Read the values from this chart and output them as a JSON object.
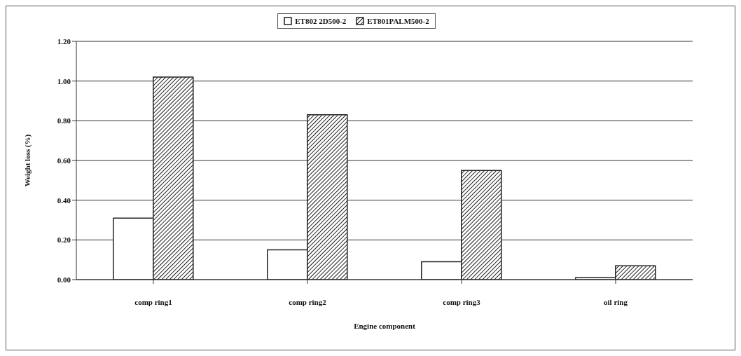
{
  "chart_data": {
    "type": "bar",
    "xlabel": "Engine component",
    "ylabel": "Weight loss (%)",
    "categories": [
      "comp ring1",
      "comp ring2",
      "comp ring3",
      "oil ring"
    ],
    "series": [
      {
        "name": "ET802 2D500-2",
        "color": "#ffffff",
        "values": [
          0.31,
          0.15,
          0.09,
          0.01
        ]
      },
      {
        "name": "ET801PALM500-2",
        "color": "#222222",
        "values": [
          1.02,
          0.83,
          0.55,
          0.07
        ]
      }
    ],
    "ylim": [
      0,
      1.2
    ],
    "yticks": [
      {
        "value": 0,
        "label": "0.00"
      },
      {
        "value": 0.2,
        "label": "0.20"
      },
      {
        "value": 0.4,
        "label": "0.40"
      },
      {
        "value": 0.6,
        "label": "0.60"
      },
      {
        "value": 0.8,
        "label": "0.80"
      },
      {
        "value": 1.0,
        "label": "1.00"
      },
      {
        "value": 1.2,
        "label": "1.20"
      }
    ],
    "grid": "y",
    "legend": "top"
  }
}
